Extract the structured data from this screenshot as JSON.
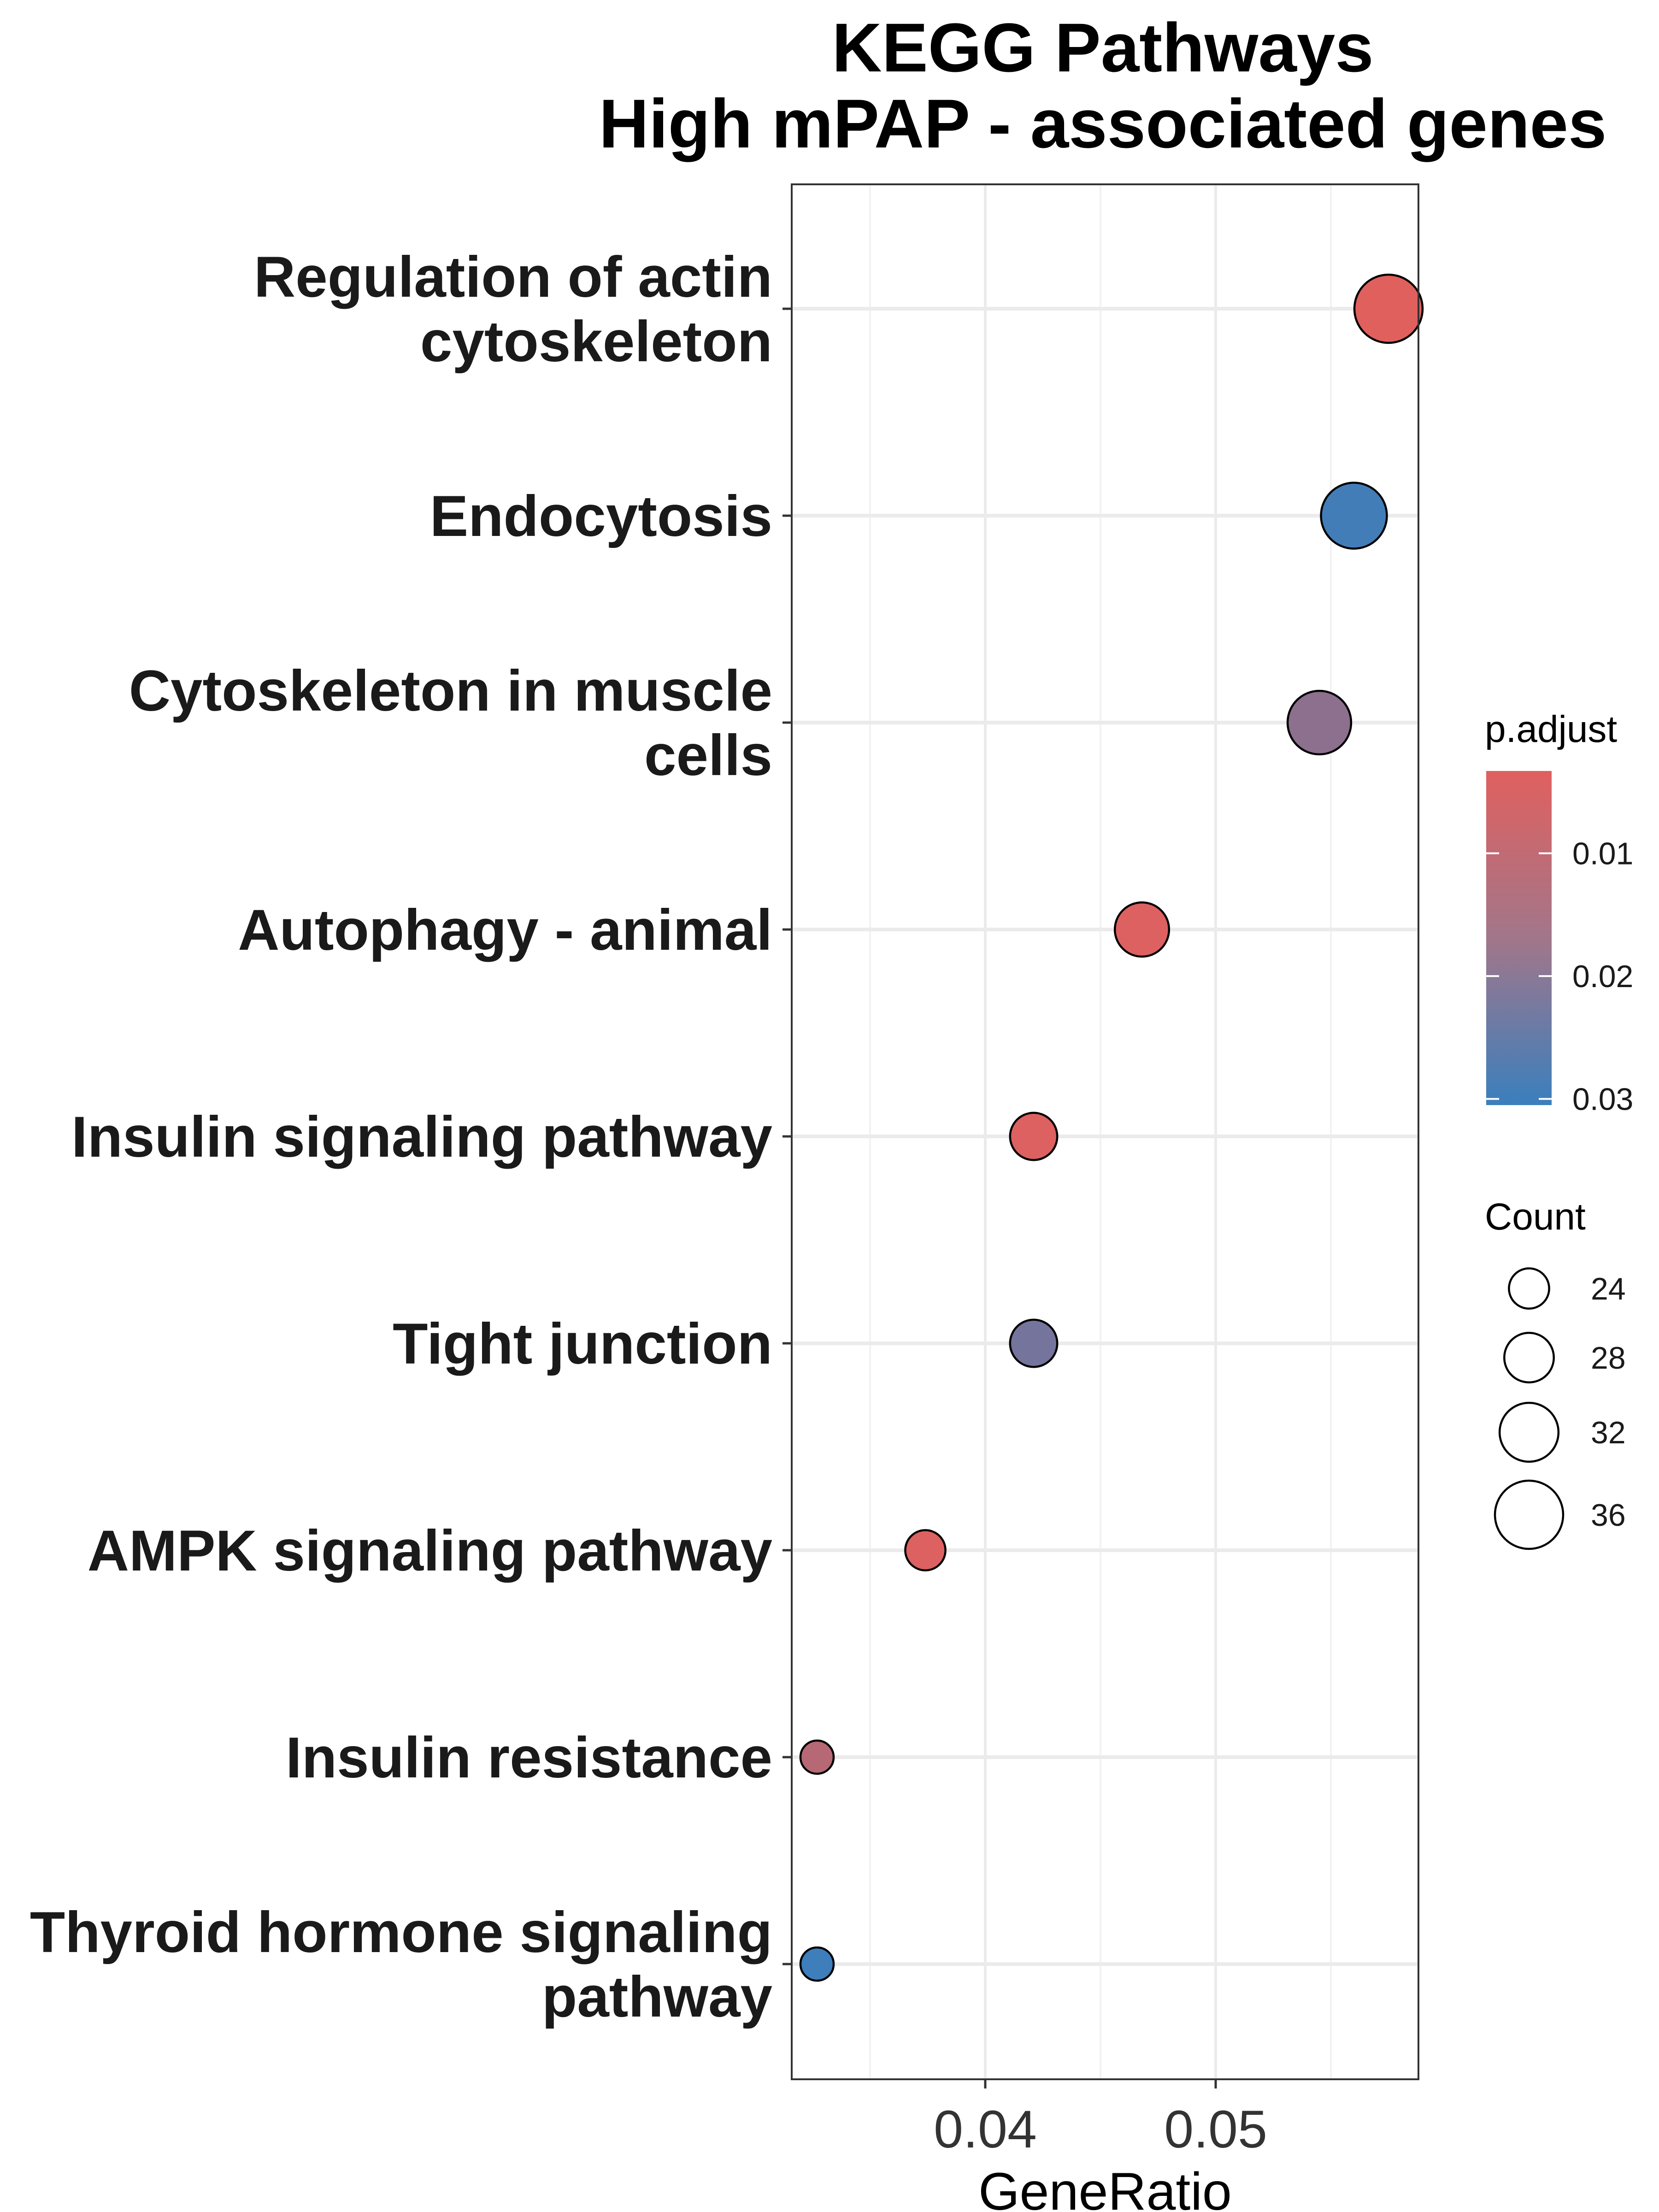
{
  "chart_data": {
    "type": "scatter",
    "title": [
      "KEGG Pathways",
      "High mPAP - associated genes"
    ],
    "xlabel": "GeneRatio",
    "ylabel": "",
    "xlim": [
      0.0316,
      0.0588
    ],
    "x_ticks": [
      0.04,
      0.05
    ],
    "x_tick_labels": [
      "0.04",
      "0.05"
    ],
    "grid": true,
    "categories": [
      [
        "Regulation of actin",
        "cytoskeleton"
      ],
      [
        "Endocytosis"
      ],
      [
        "Cytoskeleton in muscle",
        "cells"
      ],
      [
        "Autophagy - animal"
      ],
      [
        "Insulin signaling pathway"
      ],
      [
        "Tight junction"
      ],
      [
        "AMPK signaling pathway"
      ],
      [
        "Insulin resistance"
      ],
      [
        "Thyroid hormone signaling",
        "pathway"
      ]
    ],
    "points": [
      {
        "pathway": "Regulation of actin cytoskeleton",
        "gene_ratio": 0.0575,
        "count": 36,
        "p_adjust": 0.003
      },
      {
        "pathway": "Endocytosis",
        "gene_ratio": 0.056,
        "count": 35,
        "p_adjust": 0.029
      },
      {
        "pathway": "Cytoskeleton in muscle cells",
        "gene_ratio": 0.0545,
        "count": 34,
        "p_adjust": 0.017
      },
      {
        "pathway": "Autophagy - animal",
        "gene_ratio": 0.0468,
        "count": 30,
        "p_adjust": 0.004
      },
      {
        "pathway": "Insulin signaling pathway",
        "gene_ratio": 0.0421,
        "count": 27,
        "p_adjust": 0.004
      },
      {
        "pathway": "Tight junction",
        "gene_ratio": 0.0421,
        "count": 27,
        "p_adjust": 0.021
      },
      {
        "pathway": "AMPK signaling pathway",
        "gene_ratio": 0.0374,
        "count": 24,
        "p_adjust": 0.004
      },
      {
        "pathway": "Insulin resistance",
        "gene_ratio": 0.0327,
        "count": 21,
        "p_adjust": 0.01
      },
      {
        "pathway": "Thyroid hormone signaling pathway",
        "gene_ratio": 0.0327,
        "count": 21,
        "p_adjust": 0.03
      }
    ],
    "color_legend": {
      "title": "p.adjust",
      "ticks": [
        0.01,
        0.02,
        0.03
      ],
      "tick_labels": [
        "0.01",
        "0.02",
        "0.03"
      ],
      "range": [
        0.0033,
        0.0305
      ],
      "low_color": "#e0605e",
      "high_color": "#3a7fbd"
    },
    "size_legend": {
      "title": "Count",
      "values": [
        24,
        28,
        32,
        36
      ],
      "labels": [
        "24",
        "28",
        "32",
        "36"
      ],
      "range": [
        21,
        36
      ]
    }
  }
}
